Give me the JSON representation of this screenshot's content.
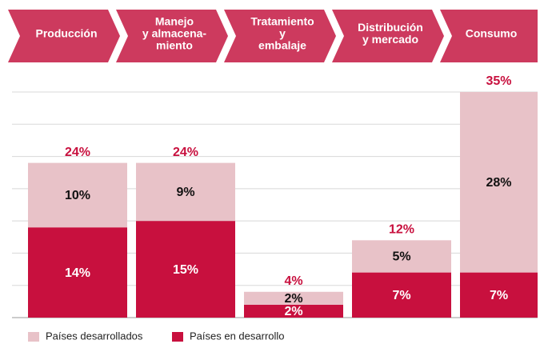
{
  "chart_data": {
    "type": "stacked_bar",
    "categories": [
      [
        "Producción"
      ],
      [
        "Manejo",
        "y almacena-",
        "miento"
      ],
      [
        "Tratamiento",
        "y",
        "embalaje"
      ],
      [
        "Distribución",
        "y mercado"
      ],
      [
        "Consumo"
      ]
    ],
    "series": [
      {
        "name": "Países en desarrollo",
        "color": "#c8103e",
        "label_color": "#ffffff",
        "values": [
          14,
          15,
          2,
          7,
          7
        ],
        "value_labels": [
          "14%",
          "15%",
          "2%",
          "7%",
          "7%"
        ]
      },
      {
        "name": "Países desarrollados",
        "color": "#e8c2c8",
        "label_color": "#111111",
        "values": [
          10,
          9,
          2,
          5,
          28
        ],
        "value_labels": [
          "10%",
          "9%",
          "2%",
          "5%",
          "28%"
        ]
      }
    ],
    "totals": [
      24,
      24,
      4,
      12,
      35
    ],
    "total_labels": [
      "24%",
      "24%",
      "4%",
      "12%",
      "35%"
    ],
    "total_color": "#c8103e",
    "header_color": "#cd3a5e",
    "ylim": [
      0,
      35
    ],
    "yticks": [
      0,
      5,
      10,
      15,
      20,
      25,
      30,
      35
    ],
    "grid": true
  }
}
